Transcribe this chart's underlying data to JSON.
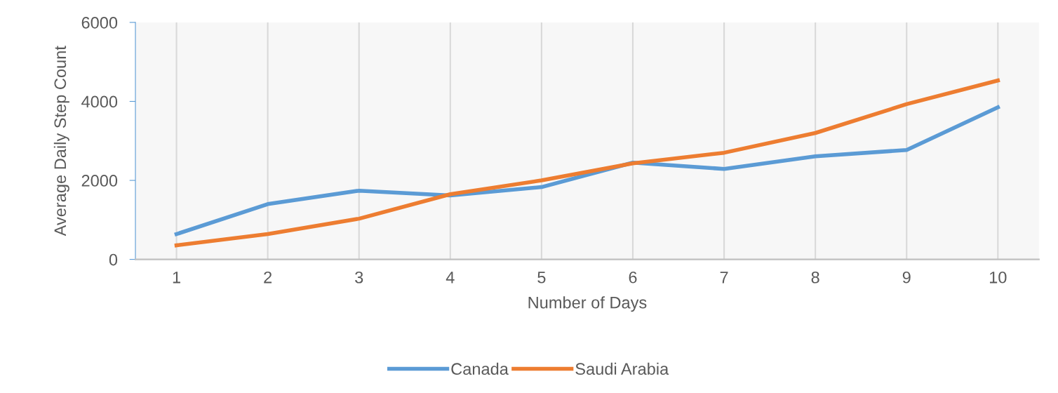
{
  "chart_data": {
    "type": "line",
    "xlabel": "Number of Days",
    "ylabel": "Average Daily Step Count",
    "x": [
      1,
      2,
      3,
      4,
      5,
      6,
      7,
      8,
      9,
      10
    ],
    "xlim": [
      0.55,
      10.45
    ],
    "xticks": [
      1,
      2,
      3,
      4,
      5,
      6,
      7,
      8,
      9,
      10
    ],
    "ylim": [
      0,
      6000
    ],
    "yticks": [
      0,
      2000,
      4000,
      6000
    ],
    "grid": "x",
    "legend": "bottom",
    "marker": "none",
    "line_style": "solid",
    "series": [
      {
        "name": "Canada",
        "color": "#5b9bd5",
        "values": [
          640,
          1400,
          1740,
          1620,
          1830,
          2450,
          2290,
          2610,
          2770,
          3850
        ]
      },
      {
        "name": "Saudi Arabia",
        "color": "#ed7d31",
        "values": [
          355,
          640,
          1030,
          1650,
          2000,
          2430,
          2700,
          3200,
          3930,
          4530
        ]
      }
    ]
  }
}
